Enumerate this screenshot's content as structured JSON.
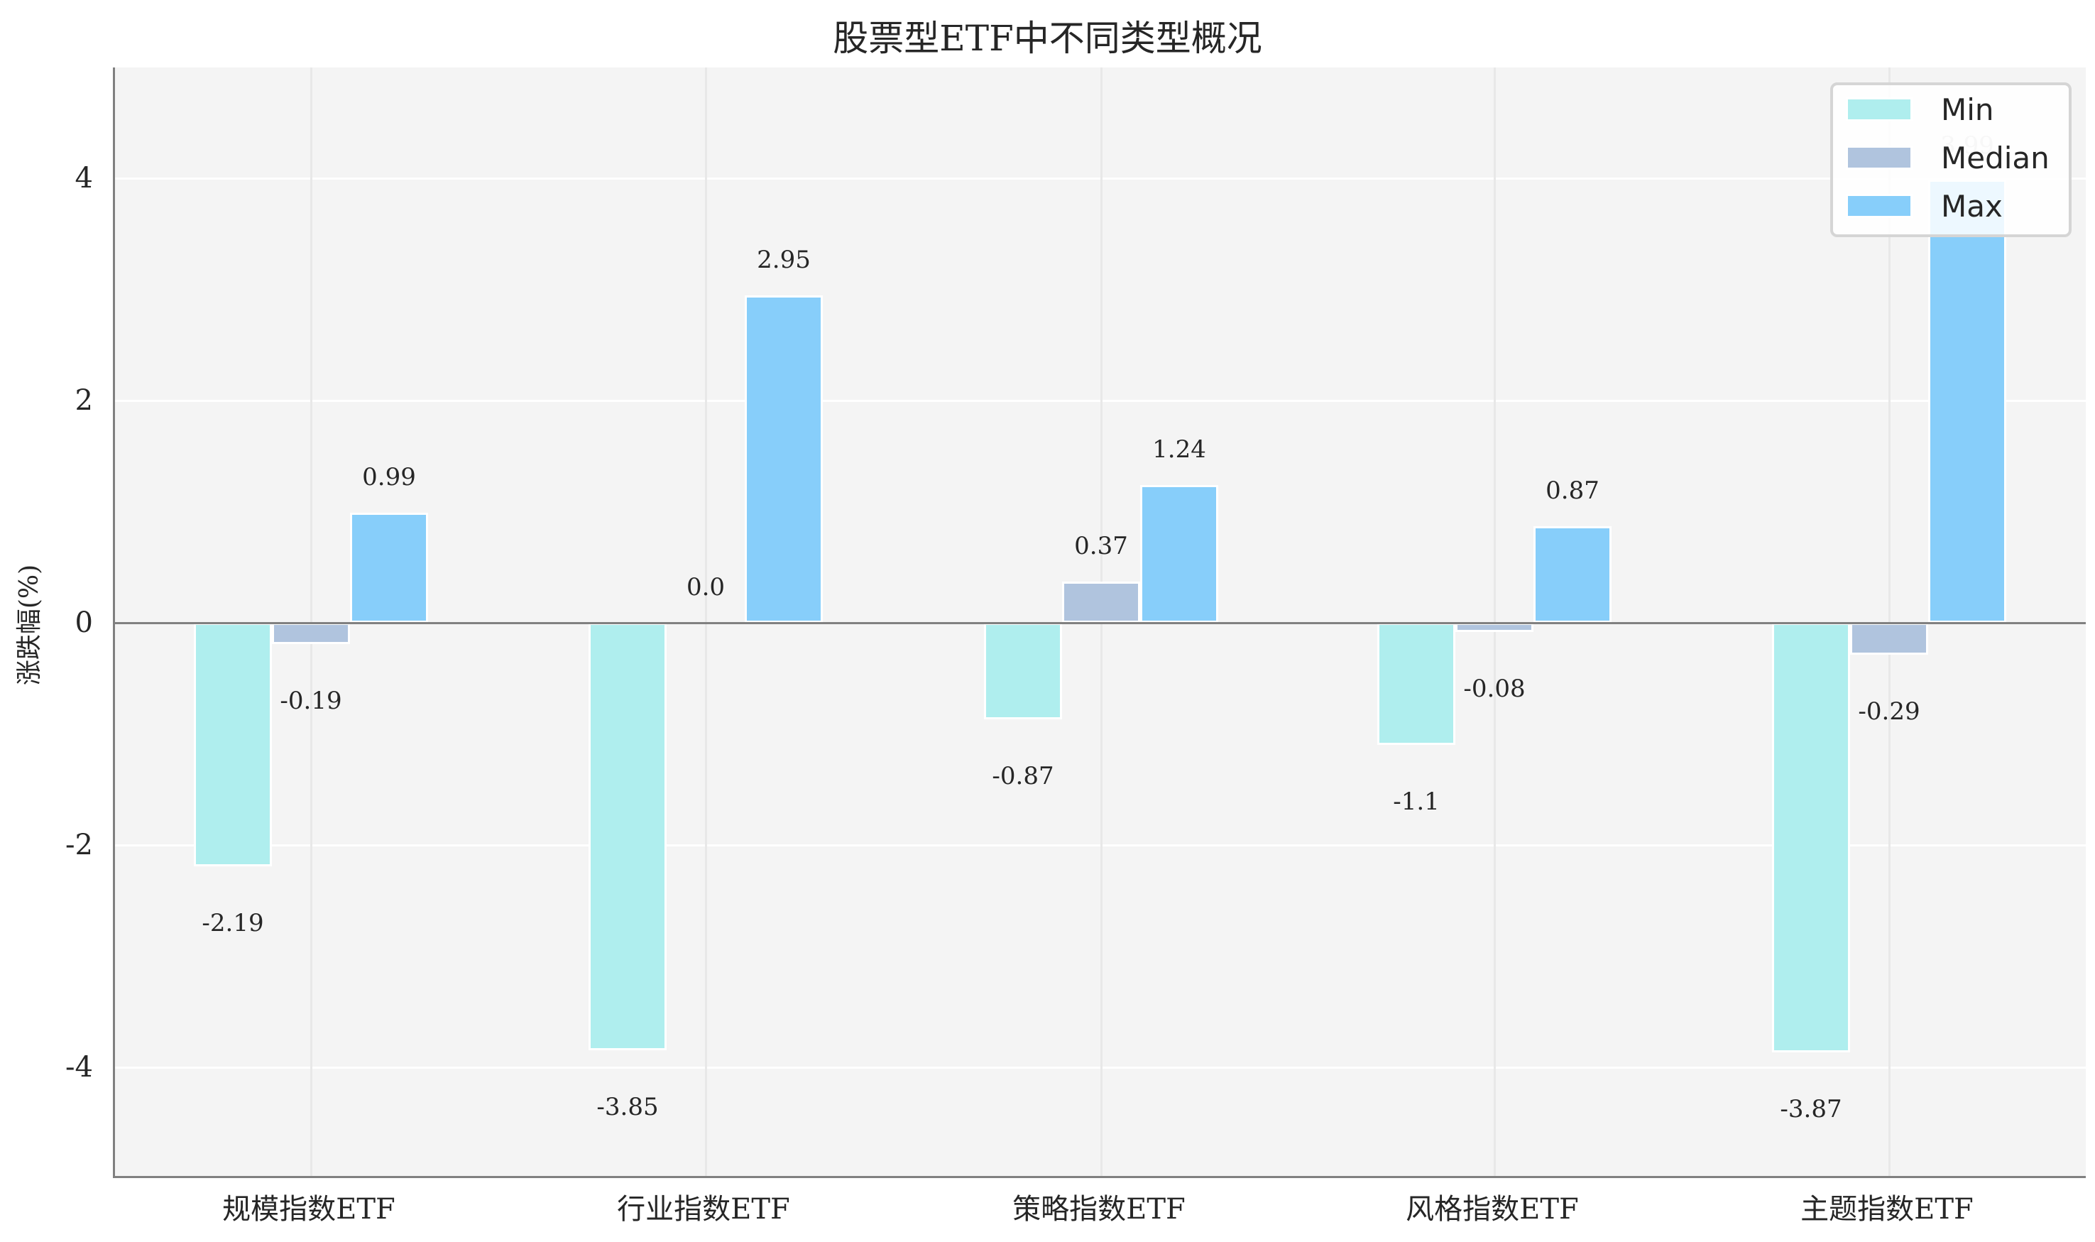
{
  "chart_data": {
    "type": "bar",
    "title": "股票型ETF中不同类型概况",
    "xlabel": "",
    "ylabel": "涨跌幅(%)",
    "ylim": [
      -5,
      5
    ],
    "yticks": [
      -4,
      -2,
      0,
      2,
      4
    ],
    "grid": true,
    "legend_position": "upper right",
    "categories": [
      "规模指数ETF",
      "行业指数ETF",
      "策略指数ETF",
      "风格指数ETF",
      "主题指数ETF"
    ],
    "series": [
      {
        "name": "Min",
        "color": "#afeeee",
        "values": [
          -2.19,
          -3.85,
          -0.87,
          -1.1,
          -3.87
        ]
      },
      {
        "name": "Median",
        "color": "#b0c4de",
        "values": [
          -0.19,
          0.0,
          0.37,
          -0.08,
          -0.29
        ]
      },
      {
        "name": "Max",
        "color": "#87cefa",
        "values": [
          0.99,
          2.95,
          1.24,
          0.87,
          3.99
        ]
      }
    ],
    "value_labels": [
      [
        "-2.19",
        "-3.85",
        "-0.87",
        "-1.1",
        "-3.87"
      ],
      [
        "-0.19",
        "0.0",
        "0.37",
        "-0.08",
        "-0.29"
      ],
      [
        "0.99",
        "2.95",
        "1.24",
        "0.87",
        "3.99"
      ]
    ]
  }
}
